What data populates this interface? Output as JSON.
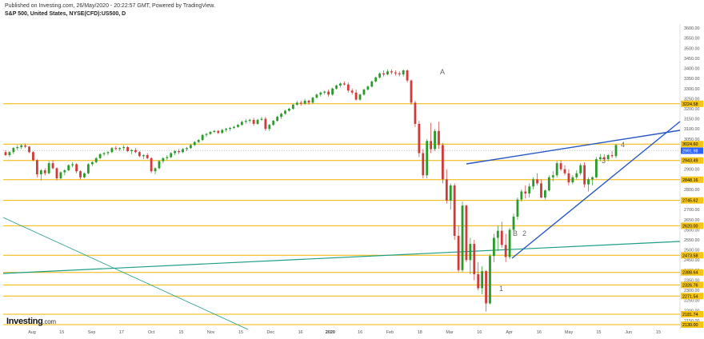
{
  "header": {
    "published": "Published on Investing.com, 26/May/2020 - 20:22:57 GMT, Powered by TradingView.",
    "symbol": "S&P 500, United States, NYSE(CFD):US500, D"
  },
  "logo": {
    "brand": "Investing",
    "suffix": ".com"
  },
  "colors": {
    "level_line": "#f0b400",
    "level_tag": "#f5c518",
    "current_tag": "#2962ff",
    "wedge": "#2656c6",
    "trend": "#1f9e89",
    "up": "#2a9a2a",
    "down": "#d03a3a"
  },
  "chart_data": {
    "type": "candlestick",
    "title": "",
    "ylim": [
      2130,
      3620
    ],
    "price_ticks": [
      3600,
      3550,
      3500,
      3450,
      3400,
      3350,
      3300,
      3250,
      3200,
      3150,
      3100,
      3050,
      3000,
      2950,
      2900,
      2850,
      2800,
      2750,
      2700,
      2650,
      2600,
      2550,
      2500,
      2450,
      2400,
      2350,
      2300,
      2250,
      2200,
      2150
    ],
    "date_ticks": [
      {
        "label": "Aug",
        "bold": false
      },
      {
        "label": "15",
        "bold": false
      },
      {
        "label": "Sep",
        "bold": false
      },
      {
        "label": "17",
        "bold": false
      },
      {
        "label": "Oct",
        "bold": false
      },
      {
        "label": "15",
        "bold": false
      },
      {
        "label": "Nov",
        "bold": false
      },
      {
        "label": "15",
        "bold": false
      },
      {
        "label": "Dec",
        "bold": false
      },
      {
        "label": "16",
        "bold": false
      },
      {
        "label": "2020",
        "bold": true
      },
      {
        "label": "16",
        "bold": false
      },
      {
        "label": "Feb",
        "bold": false
      },
      {
        "label": "18",
        "bold": false
      },
      {
        "label": "Mar",
        "bold": false
      },
      {
        "label": "16",
        "bold": false
      },
      {
        "label": "Apr",
        "bold": false
      },
      {
        "label": "16",
        "bold": false
      },
      {
        "label": "May",
        "bold": false
      },
      {
        "label": "15",
        "bold": false
      },
      {
        "label": "Jun",
        "bold": false
      },
      {
        "label": "15",
        "bold": false
      }
    ],
    "levels": [
      {
        "label": "3224.58",
        "value": 3224.58
      },
      {
        "label": "3024.60",
        "value": 3024.6
      },
      {
        "label": "2943.49",
        "value": 2943.49
      },
      {
        "label": "2848.16",
        "value": 2848.16
      },
      {
        "label": "2745.62",
        "value": 2745.62
      },
      {
        "label": "2620.00",
        "value": 2620
      },
      {
        "label": "2473.58",
        "value": 2473.58
      },
      {
        "label": "2388.64",
        "value": 2388.64
      },
      {
        "label": "2326.76",
        "value": 2326.76
      },
      {
        "label": "2271.54",
        "value": 2271.54
      },
      {
        "label": "2181.74",
        "value": 2181.74
      },
      {
        "label": "2130.00",
        "value": 2130
      }
    ],
    "current_price": {
      "label": "2991.98",
      "value": 2991.98
    },
    "annotations": [
      "A",
      "B",
      "1",
      "2",
      "3",
      "4"
    ],
    "series": [
      {
        "name": "",
        "ohlc": [
          [
            2985,
            2995,
            2965,
            2970
          ],
          [
            2970,
            2990,
            2960,
            2985
          ],
          [
            2985,
            3010,
            2975,
            3005
          ],
          [
            3005,
            3020,
            2995,
            3010
          ],
          [
            3010,
            3025,
            3000,
            3018
          ],
          [
            3018,
            3027,
            3005,
            3012
          ],
          [
            3012,
            3015,
            2980,
            2985
          ],
          [
            2985,
            2990,
            2940,
            2945
          ],
          [
            2945,
            2950,
            2860,
            2875
          ],
          [
            2875,
            2900,
            2845,
            2895
          ],
          [
            2895,
            2905,
            2870,
            2880
          ],
          [
            2880,
            2940,
            2875,
            2930
          ],
          [
            2930,
            2945,
            2900,
            2905
          ],
          [
            2905,
            2910,
            2845,
            2855
          ],
          [
            2855,
            2890,
            2850,
            2885
          ],
          [
            2885,
            2900,
            2870,
            2895
          ],
          [
            2895,
            2925,
            2890,
            2920
          ],
          [
            2920,
            2935,
            2910,
            2925
          ],
          [
            2925,
            2930,
            2880,
            2890
          ],
          [
            2890,
            2895,
            2850,
            2860
          ],
          [
            2860,
            2885,
            2855,
            2880
          ],
          [
            2880,
            2930,
            2875,
            2925
          ],
          [
            2925,
            2940,
            2915,
            2935
          ],
          [
            2935,
            2960,
            2930,
            2955
          ],
          [
            2955,
            2980,
            2950,
            2975
          ],
          [
            2975,
            2985,
            2965,
            2980
          ],
          [
            2980,
            2990,
            2970,
            2985
          ],
          [
            2985,
            3010,
            2980,
            3005
          ],
          [
            3005,
            3015,
            2995,
            3000
          ],
          [
            3000,
            3010,
            2990,
            3005
          ],
          [
            3005,
            3020,
            2995,
            3010
          ],
          [
            3010,
            3015,
            2985,
            2990
          ],
          [
            2990,
            3000,
            2975,
            2995
          ],
          [
            2995,
            3005,
            2980,
            2985
          ],
          [
            2985,
            2990,
            2960,
            2965
          ],
          [
            2965,
            2975,
            2950,
            2970
          ],
          [
            2970,
            2980,
            2950,
            2955
          ],
          [
            2955,
            2960,
            2880,
            2890
          ],
          [
            2890,
            2910,
            2875,
            2905
          ],
          [
            2905,
            2945,
            2900,
            2940
          ],
          [
            2940,
            2960,
            2930,
            2955
          ],
          [
            2955,
            2970,
            2945,
            2960
          ],
          [
            2960,
            2985,
            2955,
            2980
          ],
          [
            2980,
            2995,
            2970,
            2990
          ],
          [
            2990,
            3000,
            2975,
            2985
          ],
          [
            2985,
            3005,
            2980,
            3000
          ],
          [
            3000,
            3010,
            2990,
            3005
          ],
          [
            3005,
            3025,
            3000,
            3020
          ],
          [
            3020,
            3040,
            3015,
            3035
          ],
          [
            3035,
            3050,
            3030,
            3045
          ],
          [
            3045,
            3075,
            3040,
            3070
          ],
          [
            3070,
            3080,
            3060,
            3075
          ],
          [
            3075,
            3090,
            3070,
            3085
          ],
          [
            3085,
            3095,
            3080,
            3090
          ],
          [
            3090,
            3095,
            3075,
            3080
          ],
          [
            3080,
            3100,
            3075,
            3095
          ],
          [
            3095,
            3105,
            3085,
            3100
          ],
          [
            3100,
            3110,
            3090,
            3105
          ],
          [
            3105,
            3115,
            3100,
            3110
          ],
          [
            3110,
            3125,
            3105,
            3120
          ],
          [
            3120,
            3140,
            3115,
            3135
          ],
          [
            3135,
            3150,
            3125,
            3140
          ],
          [
            3140,
            3150,
            3130,
            3145
          ],
          [
            3145,
            3155,
            3115,
            3125
          ],
          [
            3125,
            3150,
            3120,
            3145
          ],
          [
            3145,
            3160,
            3140,
            3150
          ],
          [
            3150,
            3160,
            3090,
            3100
          ],
          [
            3100,
            3125,
            3090,
            3120
          ],
          [
            3120,
            3145,
            3115,
            3140
          ],
          [
            3140,
            3165,
            3135,
            3160
          ],
          [
            3160,
            3180,
            3150,
            3175
          ],
          [
            3175,
            3195,
            3170,
            3190
          ],
          [
            3190,
            3205,
            3185,
            3200
          ],
          [
            3200,
            3225,
            3195,
            3220
          ],
          [
            3220,
            3240,
            3215,
            3230
          ],
          [
            3230,
            3240,
            3215,
            3225
          ],
          [
            3225,
            3250,
            3220,
            3240
          ],
          [
            3240,
            3245,
            3220,
            3230
          ],
          [
            3230,
            3260,
            3225,
            3255
          ],
          [
            3255,
            3275,
            3250,
            3270
          ],
          [
            3270,
            3285,
            3260,
            3280
          ],
          [
            3280,
            3290,
            3270,
            3285
          ],
          [
            3285,
            3295,
            3260,
            3270
          ],
          [
            3270,
            3305,
            3265,
            3300
          ],
          [
            3300,
            3320,
            3295,
            3315
          ],
          [
            3315,
            3330,
            3305,
            3325
          ],
          [
            3325,
            3335,
            3315,
            3320
          ],
          [
            3320,
            3330,
            3280,
            3290
          ],
          [
            3290,
            3300,
            3270,
            3280
          ],
          [
            3280,
            3295,
            3240,
            3245
          ],
          [
            3245,
            3275,
            3240,
            3270
          ],
          [
            3270,
            3300,
            3265,
            3295
          ],
          [
            3295,
            3315,
            3290,
            3310
          ],
          [
            3310,
            3340,
            3305,
            3335
          ],
          [
            3335,
            3360,
            3330,
            3355
          ],
          [
            3355,
            3380,
            3350,
            3375
          ],
          [
            3375,
            3390,
            3360,
            3370
          ],
          [
            3370,
            3395,
            3365,
            3385
          ],
          [
            3385,
            3395,
            3370,
            3380
          ],
          [
            3380,
            3390,
            3365,
            3375
          ],
          [
            3375,
            3385,
            3360,
            3370
          ],
          [
            3370,
            3395,
            3360,
            3390
          ],
          [
            3390,
            3395,
            3330,
            3340
          ],
          [
            3340,
            3345,
            3220,
            3230
          ],
          [
            3230,
            3240,
            3110,
            3125
          ],
          [
            3125,
            3140,
            2960,
            2980
          ],
          [
            2980,
            3000,
            2855,
            2870
          ],
          [
            2870,
            3050,
            2855,
            3040
          ],
          [
            3040,
            3130,
            2980,
            3000
          ],
          [
            3000,
            3100,
            2990,
            3090
          ],
          [
            3090,
            3135,
            3000,
            3020
          ],
          [
            3020,
            3030,
            2830,
            2850
          ],
          [
            2850,
            2900,
            2730,
            2745
          ],
          [
            2745,
            2830,
            2700,
            2820
          ],
          [
            2820,
            2830,
            2550,
            2570
          ],
          [
            2570,
            2620,
            2390,
            2400
          ],
          [
            2400,
            2740,
            2390,
            2720
          ],
          [
            2720,
            2725,
            2440,
            2450
          ],
          [
            2450,
            2560,
            2380,
            2530
          ],
          [
            2530,
            2550,
            2350,
            2380
          ],
          [
            2380,
            2440,
            2300,
            2310
          ],
          [
            2310,
            2420,
            2280,
            2395
          ],
          [
            2395,
            2400,
            2195,
            2235
          ],
          [
            2235,
            2480,
            2230,
            2470
          ],
          [
            2470,
            2580,
            2440,
            2560
          ],
          [
            2560,
            2620,
            2495,
            2595
          ],
          [
            2595,
            2640,
            2510,
            2525
          ],
          [
            2525,
            2580,
            2440,
            2465
          ],
          [
            2465,
            2610,
            2455,
            2600
          ],
          [
            2600,
            2680,
            2590,
            2665
          ],
          [
            2665,
            2760,
            2650,
            2750
          ],
          [
            2750,
            2800,
            2740,
            2790
          ],
          [
            2790,
            2820,
            2755,
            2780
          ],
          [
            2780,
            2830,
            2760,
            2815
          ],
          [
            2815,
            2860,
            2800,
            2850
          ],
          [
            2850,
            2880,
            2820,
            2830
          ],
          [
            2830,
            2850,
            2755,
            2760
          ],
          [
            2760,
            2800,
            2750,
            2795
          ],
          [
            2795,
            2870,
            2790,
            2860
          ],
          [
            2860,
            2890,
            2840,
            2870
          ],
          [
            2870,
            2940,
            2860,
            2930
          ],
          [
            2930,
            2945,
            2890,
            2900
          ],
          [
            2900,
            2920,
            2870,
            2880
          ],
          [
            2880,
            2900,
            2820,
            2835
          ],
          [
            2835,
            2870,
            2825,
            2860
          ],
          [
            2860,
            2895,
            2850,
            2880
          ],
          [
            2880,
            2930,
            2870,
            2920
          ],
          [
            2920,
            2935,
            2810,
            2825
          ],
          [
            2825,
            2860,
            2790,
            2850
          ],
          [
            2850,
            2865,
            2820,
            2860
          ],
          [
            2860,
            2960,
            2855,
            2950
          ],
          [
            2950,
            2975,
            2940,
            2960
          ],
          [
            2960,
            2975,
            2945,
            2950
          ],
          [
            2950,
            2975,
            2940,
            2970
          ],
          [
            2970,
            2990,
            2955,
            2965
          ],
          [
            2965,
            3025,
            2955,
            3020
          ]
        ]
      }
    ]
  }
}
